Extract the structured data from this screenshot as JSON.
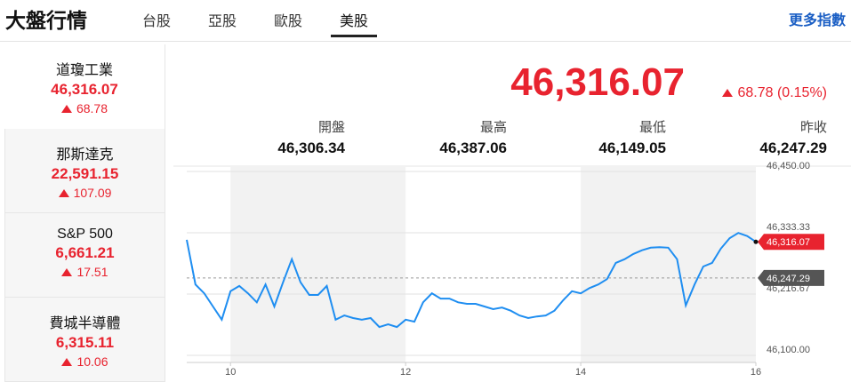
{
  "header": {
    "title": "大盤行情",
    "tabs": [
      "台股",
      "亞股",
      "歐股",
      "美股"
    ],
    "more": "更多指數"
  },
  "indices": [
    {
      "name": "道瓊工業",
      "value": "46,316.07",
      "change": "68.78"
    },
    {
      "name": "那斯達克",
      "value": "22,591.15",
      "change": "107.09"
    },
    {
      "name": "S&P 500",
      "value": "6,661.21",
      "change": "17.51"
    },
    {
      "name": "費城半導體",
      "value": "6,315.11",
      "change": "10.06"
    }
  ],
  "quote": {
    "value": "46,316.07",
    "change": "68.78 (0.15%)",
    "stats": [
      {
        "label": "開盤",
        "value": "46,306.34"
      },
      {
        "label": "最高",
        "value": "46,387.06"
      },
      {
        "label": "最低",
        "value": "46,149.05"
      },
      {
        "label": "昨收",
        "value": "46,247.29"
      }
    ]
  },
  "chart_data": {
    "type": "line",
    "color": "#1f8ef1",
    "x": [
      9.5,
      9.6,
      9.7,
      9.8,
      9.9,
      10.0,
      10.1,
      10.2,
      10.3,
      10.4,
      10.5,
      10.6,
      10.7,
      10.8,
      10.9,
      11.0,
      11.1,
      11.2,
      11.3,
      11.4,
      11.5,
      11.6,
      11.7,
      11.8,
      11.9,
      12.0,
      12.1,
      12.2,
      12.3,
      12.4,
      12.5,
      12.6,
      12.7,
      12.8,
      12.9,
      13.0,
      13.1,
      13.2,
      13.3,
      13.4,
      13.5,
      13.6,
      13.7,
      13.8,
      13.9,
      14.0,
      14.1,
      14.2,
      14.3,
      14.4,
      14.5,
      14.6,
      14.7,
      14.8,
      14.9,
      15.0,
      15.1,
      15.2,
      15.3,
      15.4,
      15.5,
      15.6,
      15.7,
      15.8,
      15.9,
      16.0
    ],
    "values": [
      46320,
      46235,
      46218,
      46193,
      46168,
      46222,
      46232,
      46218,
      46201,
      46235,
      46193,
      46239,
      46283,
      46239,
      46215,
      46215,
      46232,
      46168,
      46176,
      46171,
      46168,
      46171,
      46154,
      46159,
      46154,
      46168,
      46164,
      46201,
      46218,
      46208,
      46208,
      46201,
      46198,
      46198,
      46193,
      46188,
      46191,
      46185,
      46176,
      46171,
      46174,
      46176,
      46185,
      46205,
      46222,
      46218,
      46228,
      46235,
      46245,
      46276,
      46283,
      46293,
      46300,
      46305,
      46306,
      46305,
      46283,
      46195,
      46235,
      46269,
      46276,
      46303,
      46323,
      46333,
      46327,
      46316.07
    ],
    "xlim": [
      9.5,
      16
    ],
    "xticks": [
      10,
      12,
      14,
      16
    ],
    "ylim": [
      46100,
      46450
    ],
    "yticks": [
      {
        "value": 46100,
        "label": "46,100.00"
      },
      {
        "value": 46216.67,
        "label": "46,216.67"
      },
      {
        "value": 46333.33,
        "label": "46,333.33"
      },
      {
        "value": 46450,
        "label": "46,450.00"
      }
    ],
    "last_price": {
      "value": 46316.07,
      "label": "46,316.07"
    },
    "reference_line": {
      "value": 46247.29,
      "label": "46,247.29"
    }
  }
}
